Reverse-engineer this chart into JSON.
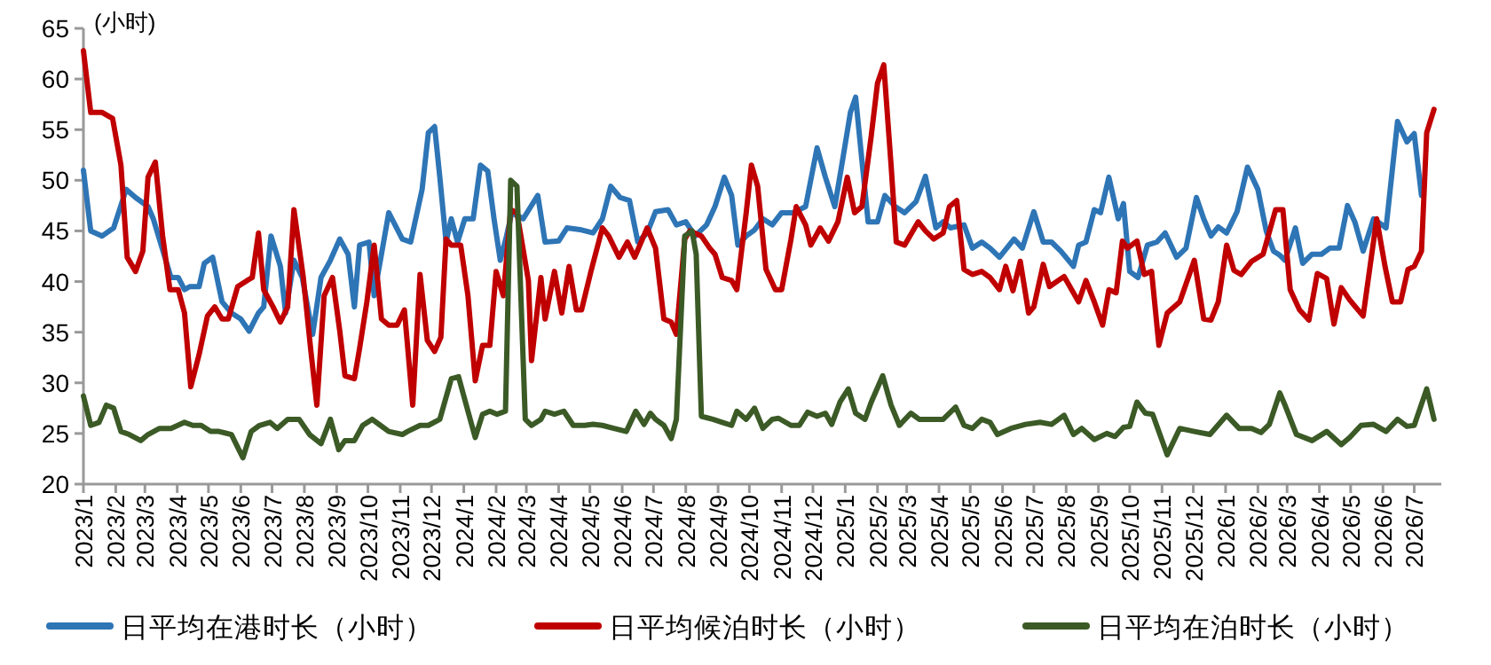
{
  "chart_data": {
    "type": "line",
    "ylabel": "(小时)",
    "legend": "bottom",
    "xlim": [
      "2023-01-01",
      "2026-07-27"
    ],
    "ylim": [
      20,
      65
    ],
    "yticks": [
      20,
      25,
      30,
      35,
      40,
      45,
      50,
      55,
      60,
      65
    ],
    "xticks": [
      {
        "value": "2023-01-01",
        "label": "2023/1"
      },
      {
        "value": "2023-02-01",
        "label": "2023/2"
      },
      {
        "value": "2023-03-01",
        "label": "2023/3"
      },
      {
        "value": "2023-04-01",
        "label": "2023/4"
      },
      {
        "value": "2023-05-01",
        "label": "2023/5"
      },
      {
        "value": "2023-06-01",
        "label": "2023/6"
      },
      {
        "value": "2023-07-01",
        "label": "2023/7"
      },
      {
        "value": "2023-08-01",
        "label": "2023/8"
      },
      {
        "value": "2023-09-01",
        "label": "2023/9"
      },
      {
        "value": "2023-10-01",
        "label": "2023/10"
      },
      {
        "value": "2023-11-01",
        "label": "2023/11"
      },
      {
        "value": "2023-12-01",
        "label": "2023/12"
      },
      {
        "value": "2024-01-01",
        "label": "2024/1"
      },
      {
        "value": "2024-02-01",
        "label": "2024/2"
      },
      {
        "value": "2024-03-01",
        "label": "2024/3"
      },
      {
        "value": "2024-04-01",
        "label": "2024/4"
      },
      {
        "value": "2024-05-01",
        "label": "2024/5"
      },
      {
        "value": "2024-06-01",
        "label": "2024/6"
      },
      {
        "value": "2024-07-01",
        "label": "2024/7"
      },
      {
        "value": "2024-08-01",
        "label": "2024/8"
      },
      {
        "value": "2024-09-01",
        "label": "2024/9"
      },
      {
        "value": "2024-10-01",
        "label": "2024/10"
      },
      {
        "value": "2024-11-01",
        "label": "2024/11"
      },
      {
        "value": "2024-12-01",
        "label": "2024/12"
      },
      {
        "value": "2025-01-01",
        "label": "2025/1"
      },
      {
        "value": "2025-02-01",
        "label": "2025/2"
      },
      {
        "value": "2025-03-01",
        "label": "2025/3"
      },
      {
        "value": "2025-04-01",
        "label": "2025/4"
      },
      {
        "value": "2025-05-01",
        "label": "2025/5"
      },
      {
        "value": "2025-06-01",
        "label": "2025/6"
      },
      {
        "value": "2025-07-01",
        "label": "2025/7"
      },
      {
        "value": "2025-08-01",
        "label": "2025/8"
      },
      {
        "value": "2025-09-01",
        "label": "2025/9"
      },
      {
        "value": "2025-10-01",
        "label": "2025/10"
      },
      {
        "value": "2025-11-01",
        "label": "2025/11"
      },
      {
        "value": "2025-12-01",
        "label": "2025/12"
      },
      {
        "value": "2026-01-01",
        "label": "2026/1"
      },
      {
        "value": "2026-02-01",
        "label": "2026/2"
      },
      {
        "value": "2026-03-01",
        "label": "2026/3"
      },
      {
        "value": "2026-04-01",
        "label": "2026/4"
      },
      {
        "value": "2026-05-01",
        "label": "2026/5"
      },
      {
        "value": "2026-06-01",
        "label": "2026/6"
      },
      {
        "value": "2026-07-01",
        "label": "2026/7"
      }
    ],
    "series": [
      {
        "name": "日平均在港时长（小时）",
        "color": "#2e75b6",
        "x": [
          "2023-01-01",
          "2023-01-08",
          "2023-01-19",
          "2023-01-30",
          "2023-02-11",
          "2023-02-20",
          "2023-03-04",
          "2023-03-09",
          "2023-03-26",
          "2023-04-02",
          "2023-04-08",
          "2023-04-13",
          "2023-04-22",
          "2023-04-27",
          "2023-05-05",
          "2023-05-14",
          "2023-05-23",
          "2023-06-01",
          "2023-06-09",
          "2023-06-18",
          "2023-06-23",
          "2023-06-30",
          "2023-07-09",
          "2023-07-14",
          "2023-07-22",
          "2023-07-30",
          "2023-08-09",
          "2023-08-17",
          "2023-08-26",
          "2023-09-04",
          "2023-09-12",
          "2023-09-18",
          "2023-09-23",
          "2023-10-02",
          "2023-10-07",
          "2023-10-21",
          "2023-11-03",
          "2023-11-11",
          "2023-11-22",
          "2023-11-28",
          "2023-12-04",
          "2023-12-09",
          "2023-12-15",
          "2023-12-20",
          "2023-12-26",
          "2024-01-02",
          "2024-01-10",
          "2024-01-17",
          "2024-01-24",
          "2024-01-30",
          "2024-02-05",
          "2024-02-11",
          "2024-02-16",
          "2024-02-27",
          "2024-03-12",
          "2024-03-19",
          "2024-04-01",
          "2024-04-09",
          "2024-04-23",
          "2024-05-04",
          "2024-05-13",
          "2024-05-21",
          "2024-05-30",
          "2024-06-08",
          "2024-06-16",
          "2024-06-25",
          "2024-07-03",
          "2024-07-15",
          "2024-07-23",
          "2024-08-01",
          "2024-08-10",
          "2024-08-21",
          "2024-08-29",
          "2024-09-07",
          "2024-09-14",
          "2024-09-20",
          "2024-09-28",
          "2024-10-06",
          "2024-10-14",
          "2024-10-23",
          "2024-11-01",
          "2024-11-12",
          "2024-11-24",
          "2024-12-05",
          "2024-12-13",
          "2024-12-22",
          "2024-12-30",
          "2025-01-06",
          "2025-01-11",
          "2025-01-17",
          "2025-01-23",
          "2025-02-01",
          "2025-02-08",
          "2025-02-18",
          "2025-02-27",
          "2025-03-10",
          "2025-03-19",
          "2025-03-29",
          "2025-04-05",
          "2025-04-12",
          "2025-04-25",
          "2025-05-03",
          "2025-05-12",
          "2025-05-20",
          "2025-05-29",
          "2025-06-12",
          "2025-06-20",
          "2025-07-01",
          "2025-07-10",
          "2025-07-18",
          "2025-07-27",
          "2025-08-08",
          "2025-08-13",
          "2025-08-20",
          "2025-08-28",
          "2025-09-03",
          "2025-09-11",
          "2025-09-20",
          "2025-09-25",
          "2025-10-01",
          "2025-10-09",
          "2025-10-18",
          "2025-10-27",
          "2025-11-04",
          "2025-11-15",
          "2025-11-24",
          "2025-12-04",
          "2025-12-11",
          "2025-12-18",
          "2025-12-25",
          "2026-01-02",
          "2026-01-12",
          "2026-01-22",
          "2026-02-01",
          "2026-02-09",
          "2026-02-16",
          "2026-02-22",
          "2026-02-27",
          "2026-03-09",
          "2026-03-16",
          "2026-03-25",
          "2026-04-03",
          "2026-04-11",
          "2026-04-20",
          "2026-04-28",
          "2026-05-05",
          "2026-05-13",
          "2026-05-23",
          "2026-06-04",
          "2026-06-15",
          "2026-06-24",
          "2026-07-01",
          "2026-07-08"
        ],
        "values": [
          51.0,
          45.0,
          44.5,
          45.3,
          49.1,
          48.3,
          47.4,
          46.2,
          40.4,
          40.4,
          39.2,
          39.5,
          39.5,
          41.8,
          42.4,
          38.0,
          36.9,
          36.3,
          35.1,
          36.9,
          37.5,
          44.5,
          41.5,
          36.9,
          42.1,
          40.4,
          34.8,
          40.4,
          42.1,
          44.2,
          42.7,
          37.5,
          43.6,
          43.9,
          38.6,
          46.8,
          44.2,
          43.9,
          49.1,
          54.7,
          55.3,
          50.3,
          43.9,
          46.2,
          43.9,
          46.2,
          46.2,
          51.5,
          50.9,
          46.2,
          42.1,
          44.5,
          46.8,
          46.2,
          48.5,
          43.9,
          44.0,
          45.3,
          45.1,
          44.8,
          46.2,
          49.4,
          48.3,
          48.0,
          43.9,
          44.8,
          46.9,
          47.1,
          45.6,
          45.9,
          44.5,
          45.6,
          47.4,
          50.3,
          48.5,
          43.6,
          44.5,
          45.1,
          46.2,
          45.6,
          46.8,
          46.8,
          47.4,
          53.2,
          50.3,
          47.4,
          52.3,
          56.7,
          58.2,
          52.0,
          45.9,
          45.9,
          48.5,
          47.4,
          46.8,
          47.9,
          50.4,
          45.3,
          45.9,
          45.3,
          45.6,
          43.3,
          43.9,
          43.3,
          42.4,
          44.2,
          43.3,
          46.9,
          43.9,
          43.9,
          43.0,
          41.5,
          43.6,
          43.9,
          47.1,
          46.8,
          50.3,
          46.2,
          47.7,
          41.0,
          40.4,
          43.6,
          43.9,
          44.8,
          42.4,
          43.3,
          48.3,
          46.2,
          44.5,
          45.4,
          44.8,
          46.9,
          51.3,
          49.1,
          45.0,
          43.0,
          42.6,
          42.1,
          45.3,
          41.8,
          42.7,
          42.7,
          43.3,
          43.3,
          47.5,
          45.9,
          43.0,
          46.2,
          45.3,
          55.8,
          53.8,
          54.6,
          48.5
        ]
      },
      {
        "name": "日平均候泊时长（小时）",
        "color": "#c00000",
        "x": [
          "2023-01-01",
          "2023-01-08",
          "2023-01-19",
          "2023-01-29",
          "2023-02-06",
          "2023-02-12",
          "2023-02-20",
          "2023-02-27",
          "2023-03-04",
          "2023-03-11",
          "2023-03-18",
          "2023-03-25",
          "2023-04-02",
          "2023-04-08",
          "2023-04-14",
          "2023-04-22",
          "2023-04-30",
          "2023-05-07",
          "2023-05-14",
          "2023-05-20",
          "2023-05-29",
          "2023-06-07",
          "2023-06-12",
          "2023-06-18",
          "2023-06-23",
          "2023-07-02",
          "2023-07-09",
          "2023-07-16",
          "2023-07-22",
          "2023-07-31",
          "2023-08-07",
          "2023-08-13",
          "2023-08-20",
          "2023-08-28",
          "2023-09-04",
          "2023-09-09",
          "2023-09-18",
          "2023-09-23",
          "2023-09-30",
          "2023-10-07",
          "2023-10-14",
          "2023-10-21",
          "2023-10-29",
          "2023-11-05",
          "2023-11-13",
          "2023-11-20",
          "2023-11-27",
          "2023-12-04",
          "2023-12-10",
          "2023-12-15",
          "2023-12-20",
          "2023-12-29",
          "2024-01-05",
          "2024-01-12",
          "2024-01-19",
          "2024-01-26",
          "2024-02-01",
          "2024-02-08",
          "2024-02-15",
          "2024-02-21",
          "2024-03-03",
          "2024-03-06",
          "2024-03-15",
          "2024-03-19",
          "2024-03-28",
          "2024-04-04",
          "2024-04-11",
          "2024-04-18",
          "2024-04-23",
          "2024-05-02",
          "2024-05-13",
          "2024-05-19",
          "2024-05-29",
          "2024-06-06",
          "2024-06-13",
          "2024-06-25",
          "2024-07-03",
          "2024-07-11",
          "2024-07-18",
          "2024-07-23",
          "2024-07-31",
          "2024-08-05",
          "2024-08-16",
          "2024-08-24",
          "2024-08-29",
          "2024-09-05",
          "2024-09-14",
          "2024-09-19",
          "2024-09-28",
          "2024-10-03",
          "2024-10-09",
          "2024-10-17",
          "2024-10-26",
          "2024-11-01",
          "2024-11-10",
          "2024-11-15",
          "2024-11-24",
          "2024-11-29",
          "2024-12-08",
          "2024-12-16",
          "2024-12-25",
          "2025-01-03",
          "2025-01-10",
          "2025-01-17",
          "2025-01-26",
          "2025-02-01",
          "2025-02-07",
          "2025-02-14",
          "2025-02-19",
          "2025-02-27",
          "2025-03-12",
          "2025-03-19",
          "2025-03-27",
          "2025-04-05",
          "2025-04-11",
          "2025-04-18",
          "2025-04-25",
          "2025-05-03",
          "2025-05-12",
          "2025-05-20",
          "2025-05-29",
          "2025-06-04",
          "2025-06-11",
          "2025-06-18",
          "2025-06-26",
          "2025-07-01",
          "2025-07-10",
          "2025-07-16",
          "2025-07-30",
          "2025-08-13",
          "2025-08-20",
          "2025-08-28",
          "2025-09-05",
          "2025-09-11",
          "2025-09-18",
          "2025-09-24",
          "2025-09-29",
          "2025-10-08",
          "2025-10-15",
          "2025-10-22",
          "2025-10-29",
          "2025-11-06",
          "2025-11-18",
          "2025-12-02",
          "2025-12-11",
          "2025-12-18",
          "2025-12-25",
          "2026-01-02",
          "2026-01-09",
          "2026-01-16",
          "2026-01-26",
          "2026-02-06",
          "2026-02-18",
          "2026-02-25",
          "2026-03-04",
          "2026-03-13",
          "2026-03-22",
          "2026-03-30",
          "2026-04-08",
          "2026-04-15",
          "2026-04-22",
          "2026-04-30",
          "2026-05-13",
          "2026-05-26",
          "2026-06-03",
          "2026-06-10",
          "2026-06-18",
          "2026-06-25",
          "2026-07-01",
          "2026-07-08",
          "2026-07-13",
          "2026-07-20"
        ],
        "values": [
          62.8,
          56.7,
          56.7,
          56.1,
          51.5,
          42.4,
          41.0,
          43.0,
          50.3,
          51.8,
          44.5,
          39.2,
          39.2,
          36.9,
          29.6,
          32.8,
          36.6,
          37.5,
          36.3,
          36.3,
          39.5,
          40.1,
          40.4,
          44.8,
          39.2,
          37.5,
          36.0,
          37.5,
          47.1,
          40.4,
          33.4,
          27.8,
          38.6,
          40.4,
          35.1,
          30.7,
          30.4,
          33.4,
          38.0,
          43.6,
          36.3,
          35.7,
          35.7,
          37.2,
          27.8,
          40.7,
          34.2,
          33.1,
          34.5,
          44.2,
          43.6,
          43.6,
          38.6,
          30.2,
          33.7,
          33.7,
          41.0,
          38.6,
          47.1,
          46.8,
          40.1,
          32.2,
          40.4,
          36.3,
          41.0,
          36.9,
          41.5,
          37.2,
          37.2,
          41.0,
          45.3,
          44.5,
          42.4,
          43.9,
          42.4,
          45.3,
          43.3,
          36.3,
          36.0,
          34.8,
          44.2,
          45.0,
          44.5,
          43.3,
          42.7,
          40.4,
          40.1,
          39.2,
          46.8,
          51.5,
          49.4,
          41.2,
          39.2,
          39.2,
          44.2,
          47.4,
          45.6,
          43.6,
          45.3,
          44.0,
          45.9,
          50.3,
          46.8,
          47.4,
          54.4,
          59.6,
          61.4,
          51.5,
          43.9,
          43.6,
          45.9,
          45.0,
          44.2,
          44.8,
          47.4,
          48.0,
          41.2,
          40.7,
          41.0,
          40.4,
          39.2,
          41.5,
          39.1,
          42.0,
          36.9,
          37.5,
          41.7,
          39.5,
          40.5,
          38.0,
          40.1,
          38.0,
          35.7,
          39.2,
          38.9,
          44.0,
          43.3,
          44.0,
          40.7,
          41.0,
          33.7,
          36.9,
          38.0,
          42.1,
          36.3,
          36.2,
          38.0,
          43.6,
          41.1,
          40.7,
          42.0,
          42.7,
          47.1,
          47.1,
          39.2,
          37.2,
          36.2,
          40.8,
          40.3,
          35.8,
          39.4,
          38.2,
          36.6,
          46.2,
          41.5,
          38.0,
          38.0,
          41.2,
          41.5,
          43.0,
          54.7,
          57.0
        ]
      },
      {
        "name": "日平均在泊时长（小时）",
        "color": "#3b5a26",
        "x": [
          "2023-01-01",
          "2023-01-08",
          "2023-01-16",
          "2023-01-23",
          "2023-01-30",
          "2023-02-06",
          "2023-02-14",
          "2023-02-25",
          "2023-03-04",
          "2023-03-15",
          "2023-03-26",
          "2023-04-08",
          "2023-04-16",
          "2023-04-24",
          "2023-05-03",
          "2023-05-11",
          "2023-05-23",
          "2023-06-03",
          "2023-06-11",
          "2023-06-19",
          "2023-06-29",
          "2023-07-06",
          "2023-07-16",
          "2023-07-27",
          "2023-08-06",
          "2023-08-17",
          "2023-08-26",
          "2023-09-03",
          "2023-09-09",
          "2023-09-18",
          "2023-09-26",
          "2023-10-05",
          "2023-10-13",
          "2023-10-21",
          "2023-11-03",
          "2023-11-08",
          "2023-11-20",
          "2023-11-28",
          "2023-12-09",
          "2023-12-20",
          "2023-12-27",
          "2024-01-05",
          "2024-01-12",
          "2024-01-19",
          "2024-01-26",
          "2024-02-02",
          "2024-02-10",
          "2024-02-15",
          "2024-02-21",
          "2024-02-29",
          "2024-03-06",
          "2024-03-15",
          "2024-03-19",
          "2024-03-28",
          "2024-04-06",
          "2024-04-15",
          "2024-04-26",
          "2024-05-04",
          "2024-05-13",
          "2024-05-24",
          "2024-06-05",
          "2024-06-14",
          "2024-06-22",
          "2024-06-28",
          "2024-07-03",
          "2024-07-11",
          "2024-07-18",
          "2024-07-23",
          "2024-07-31",
          "2024-08-07",
          "2024-08-11",
          "2024-08-16",
          "2024-08-27",
          "2024-09-05",
          "2024-09-14",
          "2024-09-19",
          "2024-09-28",
          "2024-10-06",
          "2024-10-14",
          "2024-10-23",
          "2024-10-29",
          "2024-11-10",
          "2024-11-18",
          "2024-11-26",
          "2024-12-05",
          "2024-12-13",
          "2024-12-19",
          "2024-12-27",
          "2025-01-04",
          "2025-01-11",
          "2025-01-20",
          "2025-01-26",
          "2025-02-06",
          "2025-02-14",
          "2025-02-22",
          "2025-03-05",
          "2025-03-13",
          "2025-03-25",
          "2025-04-05",
          "2025-04-17",
          "2025-04-25",
          "2025-05-03",
          "2025-05-12",
          "2025-05-20",
          "2025-05-27",
          "2025-06-09",
          "2025-06-23",
          "2025-07-07",
          "2025-07-18",
          "2025-07-30",
          "2025-08-08",
          "2025-08-16",
          "2025-08-28",
          "2025-09-09",
          "2025-09-17",
          "2025-09-25",
          "2025-10-01",
          "2025-10-08",
          "2025-10-16",
          "2025-10-23",
          "2025-11-06",
          "2025-11-18",
          "2025-12-02",
          "2025-12-17",
          "2026-01-02",
          "2026-01-14",
          "2026-01-26",
          "2026-02-04",
          "2026-02-12",
          "2026-02-22",
          "2026-02-27",
          "2026-03-10",
          "2026-03-25",
          "2026-04-08",
          "2026-04-22",
          "2026-04-30",
          "2026-05-11",
          "2026-05-23",
          "2026-06-04",
          "2026-06-15",
          "2026-06-24",
          "2026-07-01",
          "2026-07-13",
          "2026-07-20"
        ],
        "values": [
          28.7,
          25.8,
          26.1,
          27.8,
          27.5,
          25.2,
          24.9,
          24.3,
          24.9,
          25.5,
          25.5,
          26.1,
          25.8,
          25.8,
          25.2,
          25.2,
          24.9,
          22.6,
          25.2,
          25.8,
          26.1,
          25.5,
          26.4,
          26.4,
          24.9,
          24.0,
          26.4,
          23.4,
          24.3,
          24.3,
          25.8,
          26.4,
          25.8,
          25.2,
          24.9,
          25.2,
          25.8,
          25.8,
          26.4,
          30.4,
          30.6,
          27.2,
          24.6,
          26.9,
          27.2,
          26.9,
          27.2,
          50.0,
          49.4,
          26.4,
          25.8,
          26.4,
          27.2,
          26.9,
          27.2,
          25.8,
          25.8,
          25.9,
          25.8,
          25.5,
          25.2,
          27.2,
          25.9,
          27.0,
          26.4,
          25.8,
          24.5,
          26.4,
          44.5,
          45.0,
          42.7,
          26.7,
          26.4,
          26.1,
          25.8,
          27.2,
          26.4,
          27.5,
          25.5,
          26.4,
          26.5,
          25.8,
          25.8,
          27.1,
          26.7,
          27.0,
          25.9,
          28.1,
          29.4,
          27.0,
          26.4,
          28.1,
          30.7,
          27.8,
          25.8,
          27.0,
          26.4,
          26.4,
          26.4,
          27.6,
          25.8,
          25.5,
          26.4,
          26.1,
          24.9,
          25.5,
          25.9,
          26.1,
          25.9,
          26.8,
          24.9,
          25.5,
          24.4,
          25.0,
          24.7,
          25.6,
          25.7,
          28.1,
          27.0,
          26.9,
          22.9,
          25.5,
          25.2,
          24.9,
          26.8,
          25.5,
          25.5,
          25.1,
          25.9,
          29.0,
          27.8,
          24.9,
          24.3,
          25.2,
          23.9,
          24.6,
          25.8,
          25.9,
          25.2,
          26.4,
          25.7,
          25.8,
          29.4,
          26.4
        ]
      }
    ]
  }
}
